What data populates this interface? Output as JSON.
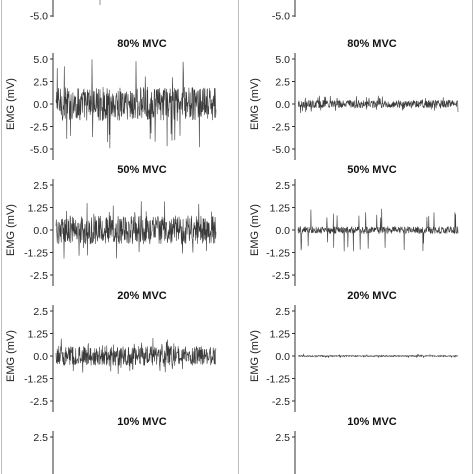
{
  "chart_data": {
    "type": "line",
    "ylabel": "EMG (mV)",
    "columns": 2,
    "partial_top": {
      "tick_labels": [
        "-5.0"
      ]
    },
    "panels": [
      {
        "title": "80% MVC",
        "ylim": [
          -6.2,
          6.2
        ],
        "yticks": [
          5.0,
          2.5,
          0.0,
          -2.5,
          -5.0
        ],
        "ytick_labels": [
          "5.0",
          "2.5",
          "0.0",
          "-2.5",
          "-5.0"
        ],
        "series": [
          {
            "column": "left",
            "amplitude": 1.9,
            "peak": 5.0
          },
          {
            "column": "right",
            "amplitude": 0.45,
            "peak": 1.0
          }
        ]
      },
      {
        "title": "50% MVC",
        "ylim": [
          -3.1,
          3.1
        ],
        "yticks": [
          2.5,
          1.25,
          0.0,
          -1.25,
          -2.5
        ],
        "ytick_labels": [
          "2.5",
          "1.25",
          "0.0",
          "-1.25",
          "-2.5"
        ],
        "series": [
          {
            "column": "left",
            "amplitude": 0.8,
            "peak": 1.6
          },
          {
            "column": "right",
            "amplitude": 0.2,
            "peak": 1.2
          }
        ]
      },
      {
        "title": "20% MVC",
        "ylim": [
          -3.1,
          3.1
        ],
        "yticks": [
          2.5,
          1.25,
          0.0,
          -1.25,
          -2.5
        ],
        "ytick_labels": [
          "2.5",
          "1.25",
          "0.0",
          "-1.25",
          "-2.5"
        ],
        "series": [
          {
            "column": "left",
            "amplitude": 0.55,
            "peak": 1.0
          },
          {
            "column": "right",
            "amplitude": 0.03,
            "peak": 0.1
          }
        ]
      },
      {
        "title": "10% MVC",
        "ylim": [
          -3.1,
          3.1
        ],
        "yticks": [
          2.5
        ],
        "ytick_labels": [
          "2.5"
        ],
        "series": []
      }
    ]
  }
}
